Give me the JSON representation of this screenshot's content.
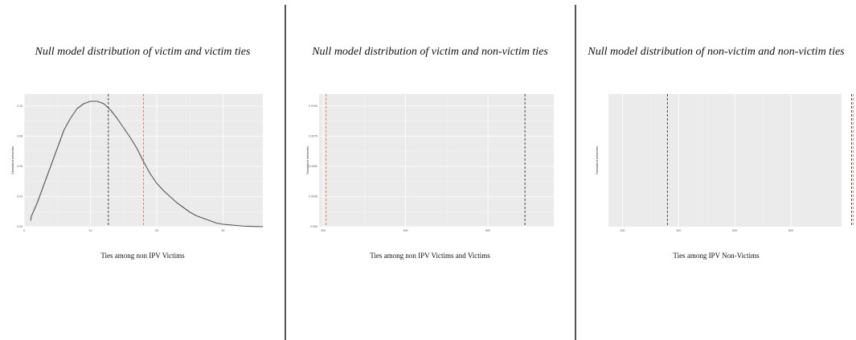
{
  "chart_data": [
    {
      "type": "line",
      "title": "Null model distribution of victim and victim ties",
      "xlabel": "Ties among non IPV Victims",
      "ylabel": "Simulated networks",
      "xlim": [
        0,
        36
      ],
      "ylim": [
        0,
        0.11
      ],
      "x_ticks": [
        0,
        10,
        20,
        30
      ],
      "y_ticks": [
        0.0,
        0.025,
        0.05,
        0.075,
        0.1
      ],
      "y_tick_labels": [
        "0.00",
        "0.03",
        "0.05",
        "0.08",
        "0.10"
      ],
      "grid": true,
      "legend": "none",
      "reference_lines": [
        {
          "x": 12.7,
          "color": "#333333",
          "style": "dashed"
        },
        {
          "x": 18.0,
          "color": "#e8734f",
          "style": "dashed"
        }
      ],
      "series": [
        {
          "color": "#555555",
          "x": [
            1,
            1.05,
            2,
            3,
            4,
            5,
            6,
            7,
            8,
            9,
            10,
            11,
            12,
            13,
            14,
            15,
            16,
            17,
            18,
            19,
            20,
            21,
            22,
            23,
            24,
            25,
            26,
            27,
            28,
            29,
            30,
            31,
            32,
            33,
            34,
            35,
            36
          ],
          "y": [
            0.005,
            0.008,
            0.02,
            0.035,
            0.05,
            0.065,
            0.08,
            0.09,
            0.098,
            0.102,
            0.104,
            0.104,
            0.102,
            0.097,
            0.09,
            0.082,
            0.074,
            0.065,
            0.054,
            0.044,
            0.036,
            0.03,
            0.025,
            0.02,
            0.016,
            0.012,
            0.009,
            0.007,
            0.005,
            0.003,
            0.002,
            0.0015,
            0.001,
            0.0005,
            0.0003,
            0.0001,
            0.0
          ]
        }
      ]
    },
    {
      "type": "line",
      "title": "Null model distribution of victim and non-victim ties",
      "xlabel": "Ties among non IPV Victims and Victims",
      "ylabel": "Simulated networks",
      "xlim": [
        190,
        760
      ],
      "ylim": [
        0,
        0.011
      ],
      "x_ticks": [
        200,
        400,
        600
      ],
      "y_ticks": [
        0.0,
        0.0025,
        0.005,
        0.0075,
        0.01
      ],
      "y_tick_labels": [
        "0.000",
        "0.0025",
        "0.0050",
        "0.0075",
        "0.0100"
      ],
      "grid": true,
      "legend": "none",
      "reference_lines": [
        {
          "x": 207,
          "color": "#e8734f",
          "style": "dashed"
        },
        {
          "x": 690,
          "color": "#333333",
          "style": "dashed"
        }
      ]
    },
    {
      "type": "line",
      "title": "Null model distribution of non-victim and non-victim ties",
      "xlabel": "Ties among IPV Non-Victims",
      "ylabel": "Simulated networks",
      "xlim": [
        150,
        980
      ],
      "ylim": [
        0,
        0.012
      ],
      "x_ticks": [
        200,
        400,
        600,
        800
      ],
      "grid": true,
      "legend": "none",
      "reference_lines": [
        {
          "x": 360,
          "color": "#333333",
          "style": "dashed"
        },
        {
          "x": 1022,
          "color": "#e8734f",
          "style": "dashed"
        },
        {
          "x": 1016,
          "color": "#333333",
          "style": "dashed"
        }
      ]
    }
  ]
}
